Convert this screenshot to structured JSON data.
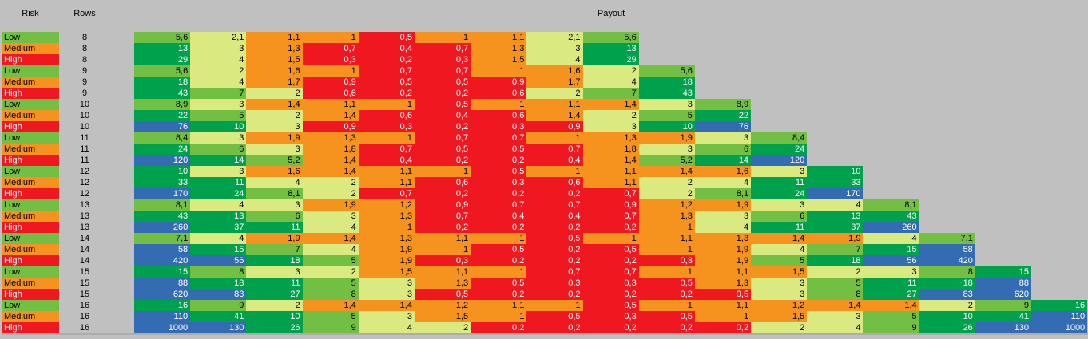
{
  "page": {
    "background": "#C0C0C0"
  },
  "header": {
    "risk_label": "Risk",
    "rows_label": "Rows",
    "payout_label": "Payout"
  },
  "chart_data": {
    "type": "heatmap",
    "title": "Plinko payout table by risk and rows",
    "columns": [
      "Risk",
      "Rows",
      "Payout"
    ],
    "decimal_separator": ",",
    "legend_position": "none",
    "risk_colors": {
      "Low": {
        "bg": "#72BF44",
        "fg": "#000000"
      },
      "Medium": {
        "bg": "#F6921E",
        "fg": "#000000"
      },
      "High": {
        "bg": "#F01820",
        "fg": "#FFFFFF"
      }
    },
    "color_scale": [
      {
        "min": 50,
        "bg": "#346CB4",
        "fg": "#FFFFFF"
      },
      {
        "min": 10,
        "bg": "#00A14D",
        "fg": "#FFFFFF"
      },
      {
        "min": 5,
        "bg": "#72BF44",
        "fg": "#000000"
      },
      {
        "min": 2,
        "bg": "#DBE981",
        "fg": "#000000"
      },
      {
        "min": 1,
        "bg": "#F6921E",
        "fg": "#000000"
      },
      {
        "min": 0,
        "bg": "#F01820",
        "fg": "#FFFFFF"
      }
    ],
    "rows": [
      {
        "risk": "Low",
        "rows": 8,
        "payouts": [
          5.6,
          2.1,
          1.1,
          1,
          0.5,
          1,
          1.1,
          2.1,
          5.6
        ]
      },
      {
        "risk": "Medium",
        "rows": 8,
        "payouts": [
          13,
          3,
          1.3,
          0.7,
          0.4,
          0.7,
          1.3,
          3,
          13
        ]
      },
      {
        "risk": "High",
        "rows": 8,
        "payouts": [
          29,
          4,
          1.5,
          0.3,
          0.2,
          0.3,
          1.5,
          4,
          29
        ]
      },
      {
        "risk": "Low",
        "rows": 9,
        "payouts": [
          5.6,
          2,
          1.6,
          1,
          0.7,
          0.7,
          1,
          1.6,
          2,
          5.6
        ]
      },
      {
        "risk": "Medium",
        "rows": 9,
        "payouts": [
          18,
          4,
          1.7,
          0.9,
          0.5,
          0.5,
          0.9,
          1.7,
          4,
          18
        ]
      },
      {
        "risk": "High",
        "rows": 9,
        "payouts": [
          43,
          7,
          2,
          0.6,
          0.2,
          0.2,
          0.6,
          2,
          7,
          43
        ]
      },
      {
        "risk": "Low",
        "rows": 10,
        "payouts": [
          8.9,
          3,
          1.4,
          1.1,
          1,
          0.5,
          1,
          1.1,
          1.4,
          3,
          8.9
        ]
      },
      {
        "risk": "Medium",
        "rows": 10,
        "payouts": [
          22,
          5,
          2,
          1.4,
          0.6,
          0.4,
          0.6,
          1.4,
          2,
          5,
          22
        ]
      },
      {
        "risk": "High",
        "rows": 10,
        "payouts": [
          76,
          10,
          3,
          0.9,
          0.3,
          0.2,
          0.3,
          0.9,
          3,
          10,
          76
        ]
      },
      {
        "risk": "Low",
        "rows": 11,
        "payouts": [
          8.4,
          3,
          1.9,
          1.3,
          1,
          0.7,
          0.7,
          1,
          1.3,
          1.9,
          3,
          8.4
        ]
      },
      {
        "risk": "Medium",
        "rows": 11,
        "payouts": [
          24,
          6,
          3,
          1.8,
          0.7,
          0.5,
          0.5,
          0.7,
          1.8,
          3,
          6,
          24
        ]
      },
      {
        "risk": "High",
        "rows": 11,
        "payouts": [
          120,
          14,
          5.2,
          1.4,
          0.4,
          0.2,
          0.2,
          0.4,
          1.4,
          5.2,
          14,
          120
        ]
      },
      {
        "risk": "Low",
        "rows": 12,
        "payouts": [
          10,
          3,
          1.6,
          1.4,
          1.1,
          1,
          0.5,
          1,
          1.1,
          1.4,
          1.6,
          3,
          10
        ]
      },
      {
        "risk": "Medium",
        "rows": 12,
        "payouts": [
          33,
          11,
          4,
          2,
          1.1,
          0.6,
          0.3,
          0.6,
          1.1,
          2,
          4,
          11,
          33
        ]
      },
      {
        "risk": "High",
        "rows": 12,
        "payouts": [
          170,
          24,
          8.1,
          2,
          0.7,
          0.2,
          0.2,
          0.2,
          0.7,
          2,
          8.1,
          24,
          170
        ]
      },
      {
        "risk": "Low",
        "rows": 13,
        "payouts": [
          8.1,
          4,
          3,
          1.9,
          1.2,
          0.9,
          0.7,
          0.7,
          0.9,
          1.2,
          1.9,
          3,
          4,
          8.1
        ]
      },
      {
        "risk": "Medium",
        "rows": 13,
        "payouts": [
          43,
          13,
          6,
          3,
          1.3,
          0.7,
          0.4,
          0.4,
          0.7,
          1.3,
          3,
          6,
          13,
          43
        ]
      },
      {
        "risk": "High",
        "rows": 13,
        "payouts": [
          260,
          37,
          11,
          4,
          1,
          0.2,
          0.2,
          0.2,
          0.2,
          1,
          4,
          11,
          37,
          260
        ]
      },
      {
        "risk": "Low",
        "rows": 14,
        "payouts": [
          7.1,
          4,
          1.9,
          1.4,
          1.3,
          1.1,
          1,
          0.5,
          1,
          1.1,
          1.3,
          1.4,
          1.9,
          4,
          7.1
        ]
      },
      {
        "risk": "Medium",
        "rows": 14,
        "payouts": [
          58,
          15,
          7,
          4,
          1.9,
          1,
          0.5,
          0.2,
          0.5,
          1,
          1.9,
          4,
          7,
          15,
          58
        ]
      },
      {
        "risk": "High",
        "rows": 14,
        "payouts": [
          420,
          56,
          18,
          5,
          1.9,
          0.3,
          0.2,
          0.2,
          0.2,
          0.3,
          1.9,
          5,
          18,
          56,
          420
        ]
      },
      {
        "risk": "Low",
        "rows": 15,
        "payouts": [
          15,
          8,
          3,
          2,
          1.5,
          1.1,
          1,
          0.7,
          0.7,
          1,
          1.1,
          1.5,
          2,
          3,
          8,
          15
        ]
      },
      {
        "risk": "Medium",
        "rows": 15,
        "payouts": [
          88,
          18,
          11,
          5,
          3,
          1.3,
          0.5,
          0.3,
          0.3,
          0.5,
          1.3,
          3,
          5,
          11,
          18,
          88
        ]
      },
      {
        "risk": "High",
        "rows": 15,
        "payouts": [
          620,
          83,
          27,
          8,
          3,
          0.5,
          0.2,
          0.2,
          0.2,
          0.2,
          0.5,
          3,
          8,
          27,
          83,
          620
        ]
      },
      {
        "risk": "Low",
        "rows": 16,
        "payouts": [
          16,
          9,
          2,
          1.4,
          1.4,
          1.2,
          1.1,
          1,
          0.5,
          1,
          1.1,
          1.2,
          1.4,
          1.4,
          2,
          9,
          16
        ]
      },
      {
        "risk": "Medium",
        "rows": 16,
        "payouts": [
          110,
          41,
          10,
          5,
          3,
          1.5,
          1,
          0.5,
          0.3,
          0.5,
          1,
          1.5,
          3,
          5,
          10,
          41,
          110
        ]
      },
      {
        "risk": "High",
        "rows": 16,
        "payouts": [
          1000,
          130,
          26,
          9,
          4,
          2,
          0.2,
          0.2,
          0.2,
          0.2,
          0.2,
          2,
          4,
          9,
          26,
          130,
          1000
        ]
      }
    ]
  }
}
